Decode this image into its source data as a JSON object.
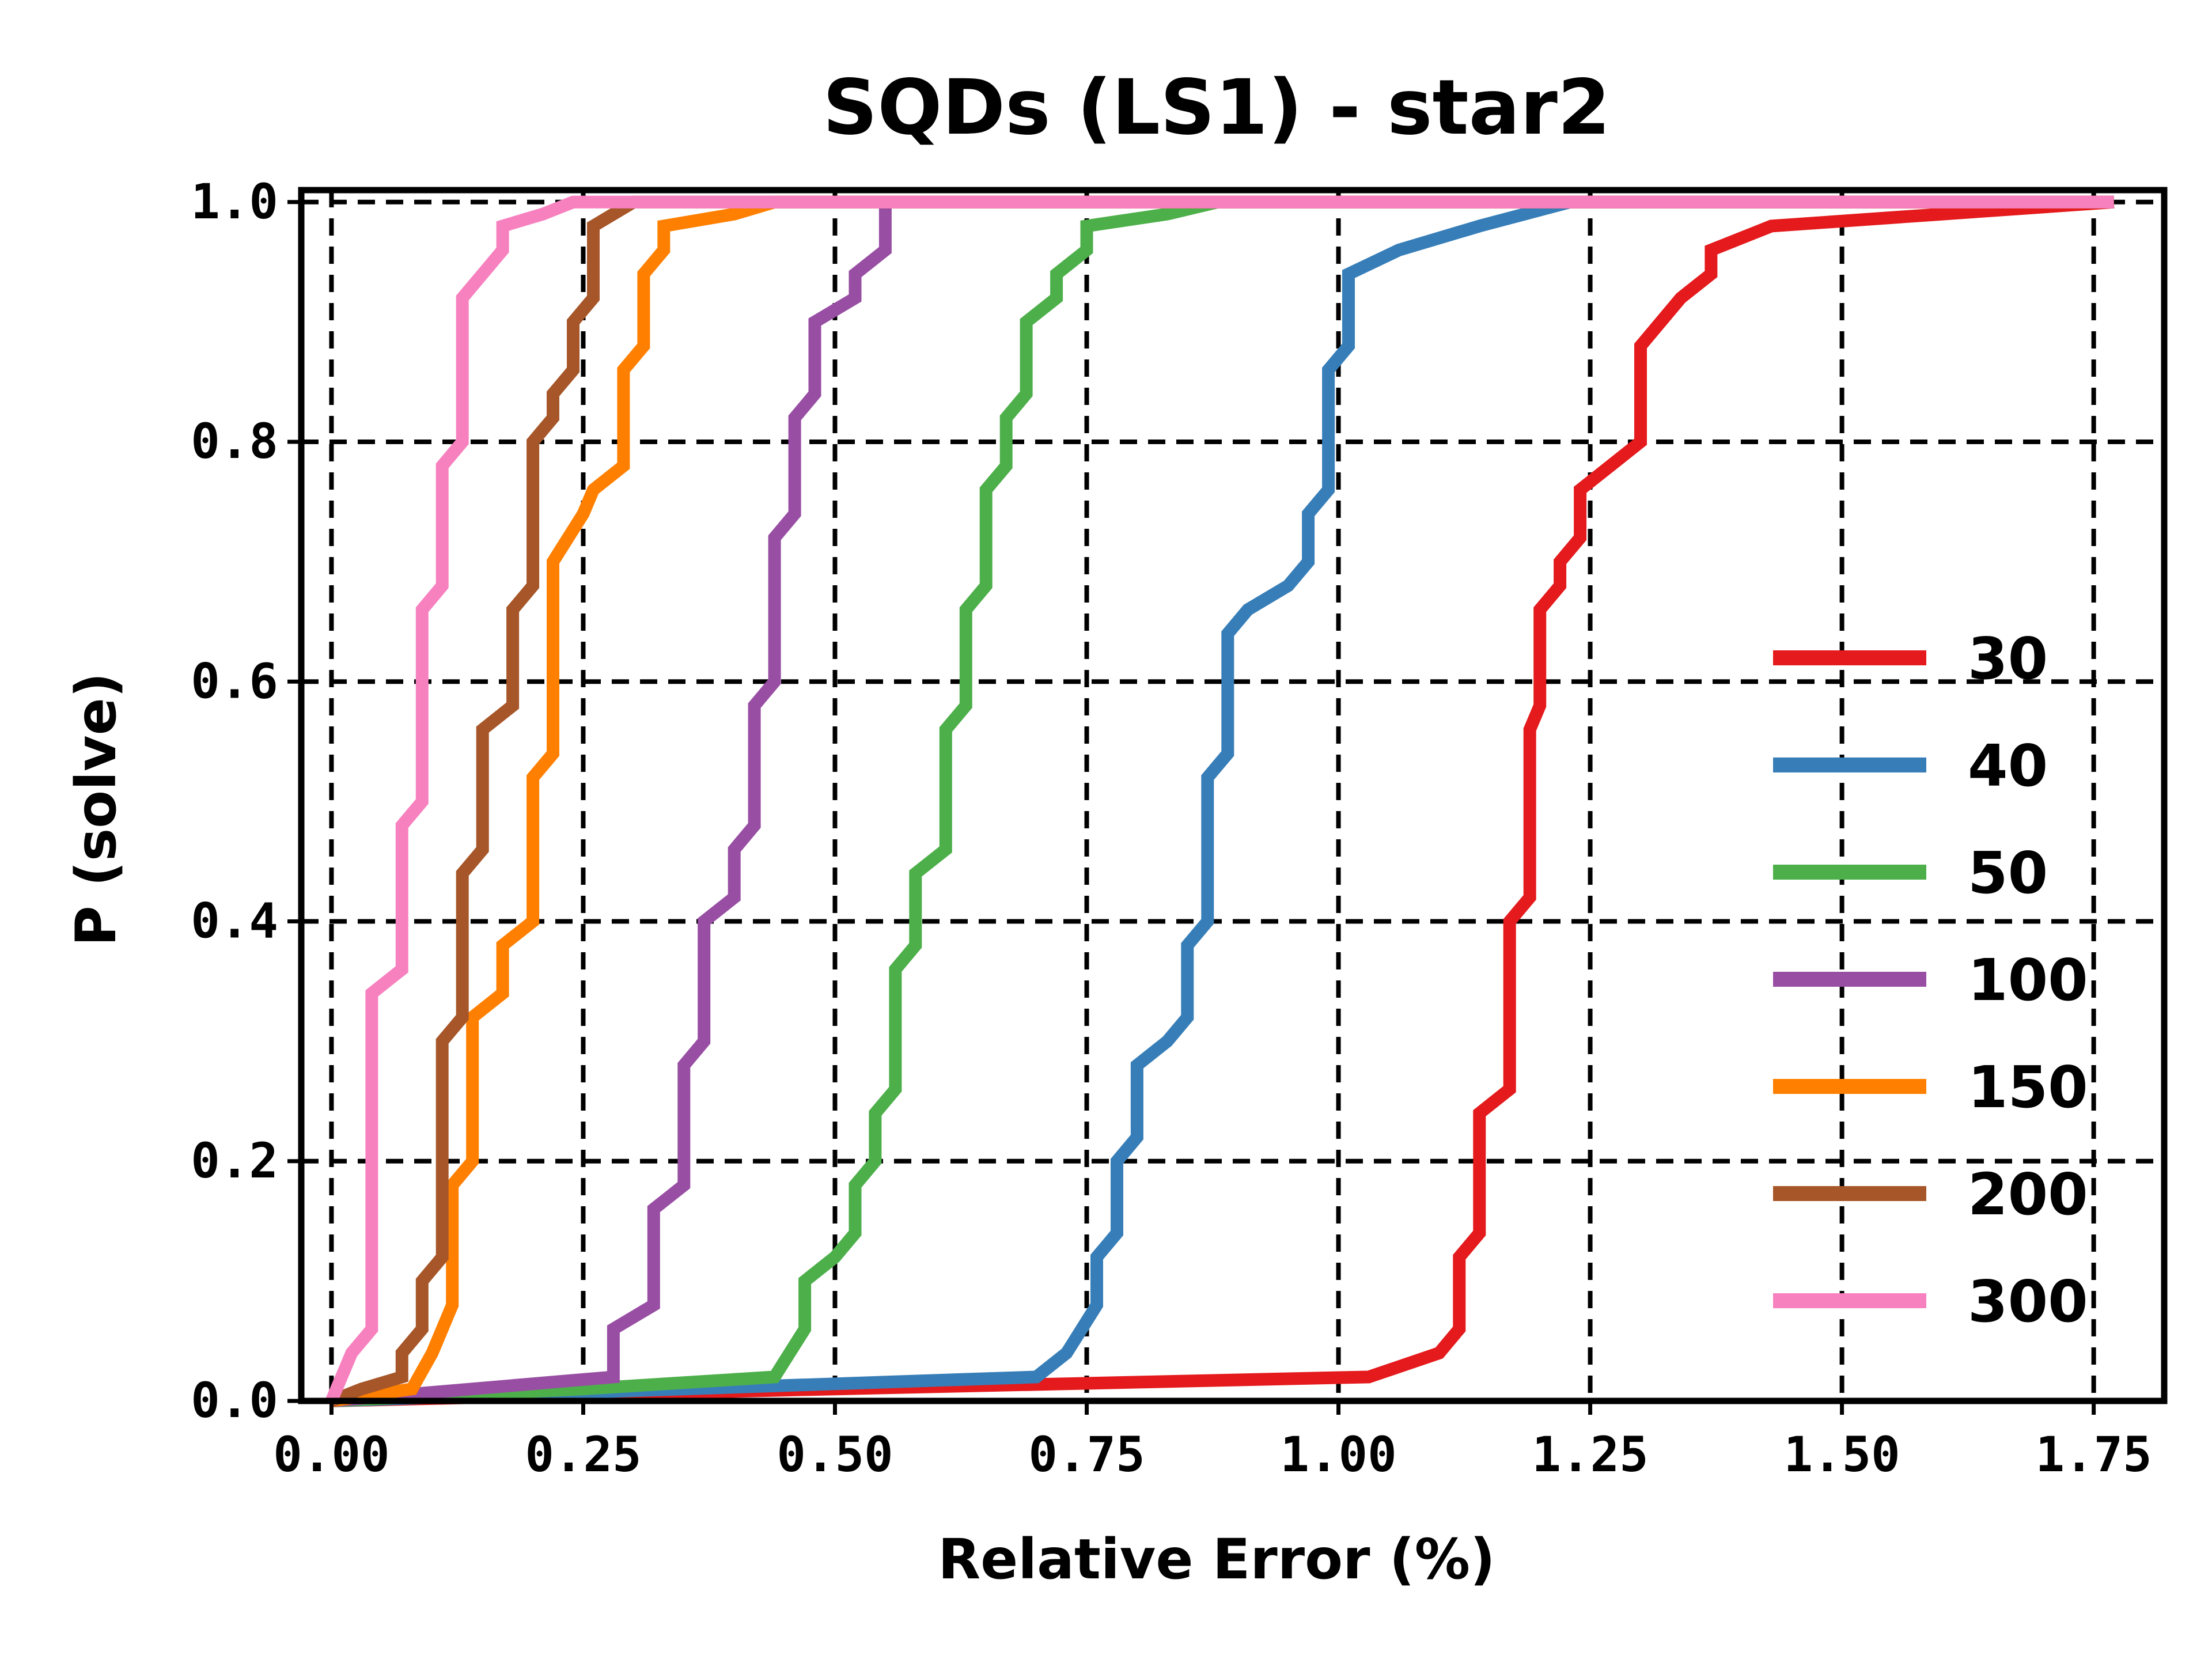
{
  "chart_data": {
    "type": "line",
    "title": "SQDs (LS1) - star2",
    "xlabel": "Relative Error (%)",
    "ylabel": "P (solve)",
    "xlim": [
      -0.03,
      1.82
    ],
    "ylim": [
      0.0,
      1.01
    ],
    "x_ticks": [
      "0.00",
      "0.25",
      "0.50",
      "0.75",
      "1.00",
      "1.25",
      "1.50",
      "1.75"
    ],
    "y_ticks": [
      "0.0",
      "0.2",
      "0.4",
      "0.6",
      "0.8",
      "1.0"
    ],
    "grid": true,
    "legend_position": "lower-right",
    "series": [
      {
        "name": "30",
        "color": "#e41a1c",
        "points": [
          [
            0.0,
            0.0
          ],
          [
            0.5,
            0.01
          ],
          [
            1.03,
            0.02
          ],
          [
            1.1,
            0.04
          ],
          [
            1.12,
            0.06
          ],
          [
            1.12,
            0.12
          ],
          [
            1.14,
            0.14
          ],
          [
            1.14,
            0.24
          ],
          [
            1.17,
            0.26
          ],
          [
            1.17,
            0.4
          ],
          [
            1.19,
            0.42
          ],
          [
            1.19,
            0.56
          ],
          [
            1.2,
            0.58
          ],
          [
            1.2,
            0.66
          ],
          [
            1.22,
            0.68
          ],
          [
            1.22,
            0.7
          ],
          [
            1.24,
            0.72
          ],
          [
            1.24,
            0.76
          ],
          [
            1.27,
            0.78
          ],
          [
            1.3,
            0.8
          ],
          [
            1.3,
            0.88
          ],
          [
            1.34,
            0.92
          ],
          [
            1.37,
            0.94
          ],
          [
            1.37,
            0.96
          ],
          [
            1.43,
            0.98
          ],
          [
            1.6,
            0.99
          ],
          [
            1.77,
            1.0
          ]
        ]
      },
      {
        "name": "40",
        "color": "#377eb8",
        "points": [
          [
            0.0,
            0.0
          ],
          [
            0.35,
            0.01
          ],
          [
            0.7,
            0.02
          ],
          [
            0.73,
            0.04
          ],
          [
            0.76,
            0.08
          ],
          [
            0.76,
            0.12
          ],
          [
            0.78,
            0.14
          ],
          [
            0.78,
            0.2
          ],
          [
            0.8,
            0.22
          ],
          [
            0.8,
            0.28
          ],
          [
            0.83,
            0.3
          ],
          [
            0.85,
            0.32
          ],
          [
            0.85,
            0.38
          ],
          [
            0.87,
            0.4
          ],
          [
            0.87,
            0.52
          ],
          [
            0.89,
            0.54
          ],
          [
            0.89,
            0.64
          ],
          [
            0.91,
            0.66
          ],
          [
            0.95,
            0.68
          ],
          [
            0.97,
            0.7
          ],
          [
            0.97,
            0.74
          ],
          [
            0.99,
            0.76
          ],
          [
            0.99,
            0.86
          ],
          [
            1.01,
            0.88
          ],
          [
            1.01,
            0.94
          ],
          [
            1.06,
            0.96
          ],
          [
            1.14,
            0.98
          ],
          [
            1.23,
            1.0
          ],
          [
            1.77,
            1.0
          ]
        ]
      },
      {
        "name": "50",
        "color": "#4daf4a",
        "points": [
          [
            0.0,
            0.0
          ],
          [
            0.25,
            0.01
          ],
          [
            0.44,
            0.02
          ],
          [
            0.47,
            0.06
          ],
          [
            0.47,
            0.1
          ],
          [
            0.5,
            0.12
          ],
          [
            0.52,
            0.14
          ],
          [
            0.52,
            0.18
          ],
          [
            0.54,
            0.2
          ],
          [
            0.54,
            0.24
          ],
          [
            0.56,
            0.26
          ],
          [
            0.56,
            0.36
          ],
          [
            0.58,
            0.38
          ],
          [
            0.58,
            0.44
          ],
          [
            0.61,
            0.46
          ],
          [
            0.61,
            0.56
          ],
          [
            0.63,
            0.58
          ],
          [
            0.63,
            0.66
          ],
          [
            0.65,
            0.68
          ],
          [
            0.65,
            0.76
          ],
          [
            0.67,
            0.78
          ],
          [
            0.67,
            0.82
          ],
          [
            0.69,
            0.84
          ],
          [
            0.69,
            0.9
          ],
          [
            0.72,
            0.92
          ],
          [
            0.72,
            0.94
          ],
          [
            0.75,
            0.96
          ],
          [
            0.75,
            0.98
          ],
          [
            0.83,
            0.99
          ],
          [
            0.88,
            1.0
          ],
          [
            1.77,
            1.0
          ]
        ]
      },
      {
        "name": "100",
        "color": "#984ea3",
        "points": [
          [
            0.0,
            0.0
          ],
          [
            0.28,
            0.02
          ],
          [
            0.28,
            0.06
          ],
          [
            0.32,
            0.08
          ],
          [
            0.32,
            0.16
          ],
          [
            0.35,
            0.18
          ],
          [
            0.35,
            0.28
          ],
          [
            0.37,
            0.3
          ],
          [
            0.37,
            0.4
          ],
          [
            0.4,
            0.42
          ],
          [
            0.4,
            0.46
          ],
          [
            0.42,
            0.48
          ],
          [
            0.42,
            0.58
          ],
          [
            0.44,
            0.6
          ],
          [
            0.44,
            0.72
          ],
          [
            0.46,
            0.74
          ],
          [
            0.46,
            0.82
          ],
          [
            0.48,
            0.84
          ],
          [
            0.48,
            0.9
          ],
          [
            0.52,
            0.92
          ],
          [
            0.52,
            0.94
          ],
          [
            0.55,
            0.96
          ],
          [
            0.55,
            1.0
          ],
          [
            1.77,
            1.0
          ]
        ]
      },
      {
        "name": "150",
        "color": "#ff7f00",
        "points": [
          [
            0.0,
            0.0
          ],
          [
            0.08,
            0.01
          ],
          [
            0.1,
            0.04
          ],
          [
            0.12,
            0.08
          ],
          [
            0.12,
            0.18
          ],
          [
            0.14,
            0.2
          ],
          [
            0.14,
            0.32
          ],
          [
            0.17,
            0.34
          ],
          [
            0.17,
            0.38
          ],
          [
            0.2,
            0.4
          ],
          [
            0.2,
            0.52
          ],
          [
            0.22,
            0.54
          ],
          [
            0.22,
            0.7
          ],
          [
            0.25,
            0.74
          ],
          [
            0.26,
            0.76
          ],
          [
            0.29,
            0.78
          ],
          [
            0.29,
            0.86
          ],
          [
            0.31,
            0.88
          ],
          [
            0.31,
            0.94
          ],
          [
            0.33,
            0.96
          ],
          [
            0.33,
            0.98
          ],
          [
            0.4,
            0.99
          ],
          [
            0.44,
            1.0
          ],
          [
            1.77,
            1.0
          ]
        ]
      },
      {
        "name": "200",
        "color": "#a65628",
        "points": [
          [
            0.0,
            0.0
          ],
          [
            0.03,
            0.01
          ],
          [
            0.07,
            0.02
          ],
          [
            0.07,
            0.04
          ],
          [
            0.09,
            0.06
          ],
          [
            0.09,
            0.1
          ],
          [
            0.11,
            0.12
          ],
          [
            0.11,
            0.3
          ],
          [
            0.13,
            0.32
          ],
          [
            0.13,
            0.44
          ],
          [
            0.15,
            0.46
          ],
          [
            0.15,
            0.56
          ],
          [
            0.18,
            0.58
          ],
          [
            0.18,
            0.66
          ],
          [
            0.2,
            0.68
          ],
          [
            0.2,
            0.8
          ],
          [
            0.22,
            0.82
          ],
          [
            0.22,
            0.84
          ],
          [
            0.24,
            0.86
          ],
          [
            0.24,
            0.9
          ],
          [
            0.26,
            0.92
          ],
          [
            0.26,
            0.98
          ],
          [
            0.3,
            1.0
          ],
          [
            1.77,
            1.0
          ]
        ]
      },
      {
        "name": "300",
        "color": "#f781bf",
        "points": [
          [
            0.0,
            0.0
          ],
          [
            0.02,
            0.04
          ],
          [
            0.04,
            0.06
          ],
          [
            0.04,
            0.34
          ],
          [
            0.07,
            0.36
          ],
          [
            0.07,
            0.48
          ],
          [
            0.09,
            0.5
          ],
          [
            0.09,
            0.66
          ],
          [
            0.11,
            0.68
          ],
          [
            0.11,
            0.78
          ],
          [
            0.13,
            0.8
          ],
          [
            0.13,
            0.92
          ],
          [
            0.15,
            0.94
          ],
          [
            0.17,
            0.96
          ],
          [
            0.17,
            0.98
          ],
          [
            0.21,
            0.99
          ],
          [
            0.24,
            1.0
          ],
          [
            1.77,
            1.0
          ]
        ]
      }
    ]
  }
}
